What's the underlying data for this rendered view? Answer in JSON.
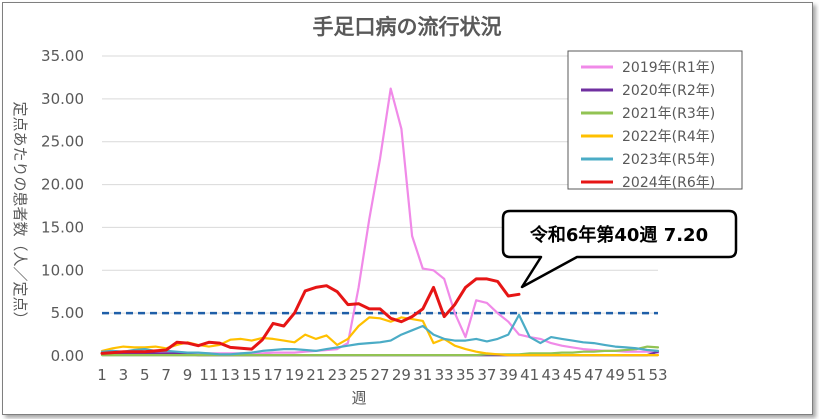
{
  "chart_data": {
    "type": "line",
    "title": "手足口病の流行状況",
    "xlabel": "週",
    "ylabel": "定点あたりの患者数（人／定点）",
    "xlim": [
      1,
      53
    ],
    "ylim": [
      0,
      35
    ],
    "yticks": [
      "0.00",
      "5.00",
      "10.00",
      "15.00",
      "20.00",
      "25.00",
      "30.00",
      "35.00"
    ],
    "xticks": [
      "1",
      "3",
      "5",
      "7",
      "9",
      "11",
      "13",
      "15",
      "17",
      "19",
      "21",
      "23",
      "25",
      "27",
      "29",
      "31",
      "33",
      "35",
      "37",
      "39",
      "41",
      "43",
      "45",
      "47",
      "49",
      "51",
      "53"
    ],
    "grid": "horizontal",
    "legend_position": "top-right",
    "reference_line": {
      "y": 5.0,
      "style": "dashed",
      "color": "#1f5fa8"
    },
    "annotation": {
      "text": "令和6年第40週 7.20",
      "x": 40,
      "y": 7.2
    },
    "series": [
      {
        "name": "2019年(R1年)",
        "color": "#f08ae8",
        "values": [
          0.3,
          0.3,
          0.3,
          0.3,
          0.3,
          0.3,
          0.3,
          0.3,
          0.3,
          0.3,
          0.3,
          0.3,
          0.3,
          0.3,
          0.3,
          0.3,
          0.4,
          0.4,
          0.4,
          0.5,
          0.6,
          0.7,
          0.8,
          1.5,
          8.0,
          16.0,
          23.0,
          31.2,
          26.5,
          14.0,
          10.2,
          10.0,
          9.0,
          5.0,
          2.2,
          6.5,
          6.2,
          5.0,
          4.0,
          2.5,
          2.2,
          2.0,
          1.5,
          1.2,
          1.0,
          0.8,
          0.7,
          0.6,
          0.6,
          0.5,
          0.5,
          0.5,
          0.4
        ]
      },
      {
        "name": "2020年(R2年)",
        "color": "#7030a0",
        "values": [
          0.3,
          0.3,
          0.3,
          0.3,
          0.3,
          0.3,
          0.3,
          0.3,
          0.2,
          0.1,
          0.1,
          0.1,
          0.1,
          0.1,
          0.1,
          0.1,
          0.1,
          0.1,
          0.1,
          0.1,
          0.1,
          0.1,
          0.1,
          0.1,
          0.1,
          0.1,
          0.1,
          0.1,
          0.1,
          0.1,
          0.1,
          0.1,
          0.1,
          0.1,
          0.1,
          0.1,
          0.1,
          0.1,
          0.1,
          0.1,
          0.1,
          0.1,
          0.1,
          0.1,
          0.1,
          0.1,
          0.1,
          0.1,
          0.1,
          0.1,
          0.1,
          0.1,
          0.5
        ]
      },
      {
        "name": "2021年(R3年)",
        "color": "#92c353",
        "values": [
          0.1,
          0.1,
          0.1,
          0.1,
          0.1,
          0.1,
          0.1,
          0.1,
          0.1,
          0.1,
          0.1,
          0.1,
          0.1,
          0.1,
          0.1,
          0.1,
          0.1,
          0.1,
          0.1,
          0.1,
          0.1,
          0.1,
          0.1,
          0.1,
          0.1,
          0.1,
          0.1,
          0.1,
          0.1,
          0.1,
          0.1,
          0.1,
          0.1,
          0.1,
          0.1,
          0.1,
          0.2,
          0.2,
          0.2,
          0.2,
          0.3,
          0.3,
          0.3,
          0.4,
          0.4,
          0.5,
          0.5,
          0.6,
          0.6,
          0.7,
          0.8,
          1.1,
          1.0
        ]
      },
      {
        "name": "2022年(R4年)",
        "color": "#ffc000",
        "values": [
          0.6,
          0.9,
          1.1,
          1.0,
          1.0,
          1.1,
          0.9,
          1.3,
          1.6,
          1.3,
          1.1,
          1.3,
          1.9,
          2.0,
          1.8,
          2.1,
          2.0,
          1.8,
          1.6,
          2.5,
          2.0,
          2.4,
          1.3,
          2.0,
          3.5,
          4.5,
          4.4,
          4.0,
          4.5,
          4.3,
          4.1,
          1.5,
          2.0,
          1.2,
          0.8,
          0.5,
          0.3,
          0.2,
          0.1,
          0.1,
          0.1,
          0.1,
          0.1,
          0.1,
          0.1,
          0.1,
          0.1,
          0.1,
          0.1,
          0.1,
          0.1,
          0.1,
          0.1
        ]
      },
      {
        "name": "2023年(R5年)",
        "color": "#4bacc6",
        "values": [
          0.5,
          0.6,
          0.5,
          0.7,
          0.8,
          0.6,
          0.6,
          0.5,
          0.4,
          0.4,
          0.3,
          0.2,
          0.2,
          0.3,
          0.4,
          0.6,
          0.7,
          0.8,
          0.8,
          0.7,
          0.6,
          0.8,
          1.0,
          1.2,
          1.4,
          1.5,
          1.6,
          1.8,
          2.5,
          3.0,
          3.5,
          2.5,
          2.0,
          1.8,
          1.8,
          2.0,
          1.7,
          2.0,
          2.5,
          4.8,
          2.2,
          1.5,
          2.2,
          2.0,
          1.8,
          1.6,
          1.5,
          1.3,
          1.1,
          1.0,
          0.9,
          0.7,
          0.6
        ]
      },
      {
        "name": "2024年(R6年)",
        "color": "#e61515",
        "values": [
          0.3,
          0.4,
          0.5,
          0.5,
          0.5,
          0.6,
          0.7,
          1.6,
          1.5,
          1.2,
          1.6,
          1.5,
          1.0,
          0.9,
          0.8,
          1.9,
          3.8,
          3.5,
          5.0,
          7.6,
          8.0,
          8.2,
          7.5,
          6.0,
          6.1,
          5.5,
          5.5,
          4.4,
          4.0,
          4.6,
          5.5,
          8.0,
          4.6,
          6.0,
          8.0,
          9.0,
          9.0,
          8.7,
          7.0,
          7.2
        ]
      }
    ]
  }
}
